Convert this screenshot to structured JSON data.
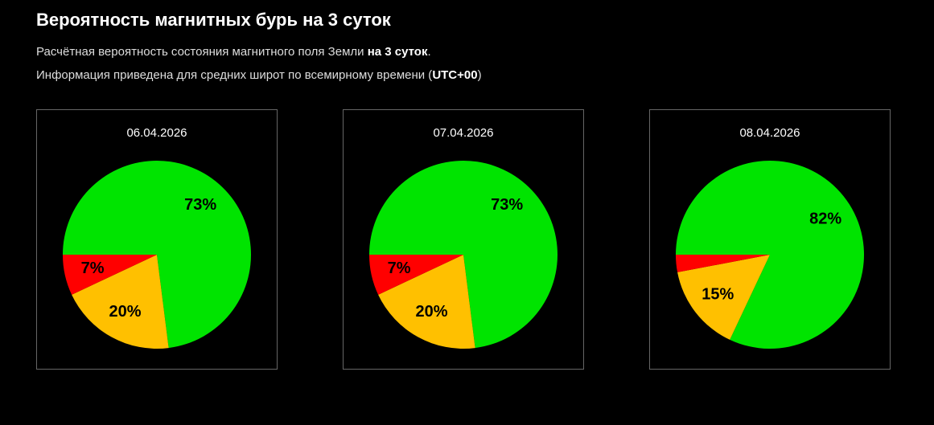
{
  "title": "Вероятность магнитных бурь на 3 суток",
  "subtitle1": {
    "text": "Расчётная вероятность состояния магнитного поля Земли ",
    "bold": "на 3 суток",
    "end": "."
  },
  "subtitle2": {
    "text": "Информация приведена для средних широт по всемирному времени (",
    "bold": "UTC+00",
    "end": ")"
  },
  "colors": {
    "green": "#00e400",
    "yellow": "#ffc000",
    "red": "#ff0000"
  },
  "chart_data": [
    {
      "type": "pie",
      "title": "06.04.2026",
      "slices": [
        {
          "color": "green",
          "value": 73,
          "label": "73%"
        },
        {
          "color": "yellow",
          "value": 20,
          "label": "20%"
        },
        {
          "color": "red",
          "value": 7,
          "label": "7%"
        }
      ]
    },
    {
      "type": "pie",
      "title": "07.04.2026",
      "slices": [
        {
          "color": "green",
          "value": 73,
          "label": "73%"
        },
        {
          "color": "yellow",
          "value": 20,
          "label": "20%"
        },
        {
          "color": "red",
          "value": 7,
          "label": "7%"
        }
      ]
    },
    {
      "type": "pie",
      "title": "08.04.2026",
      "slices": [
        {
          "color": "green",
          "value": 82,
          "label": "82%"
        },
        {
          "color": "yellow",
          "value": 15,
          "label": "15%"
        },
        {
          "color": "red",
          "value": 3,
          "label": ""
        }
      ]
    }
  ]
}
